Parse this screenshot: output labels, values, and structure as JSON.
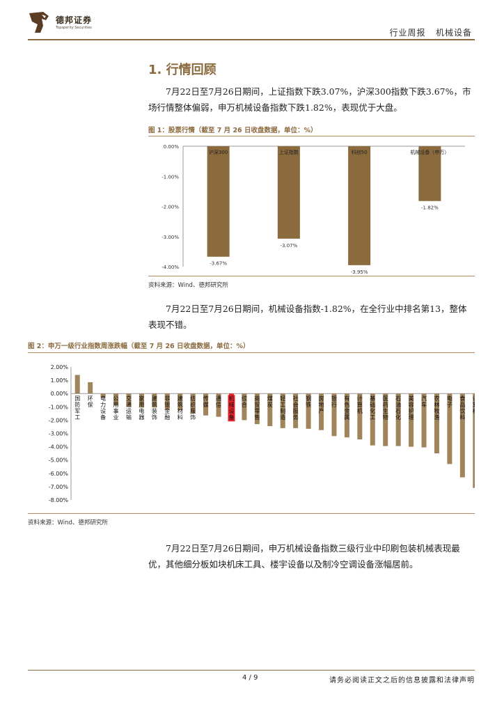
{
  "header": {
    "brand_cn": "德邦证券",
    "brand_en": "Topsperity Securities",
    "report_type": "行业周报",
    "industry": "机械设备"
  },
  "section": {
    "title": "1. 行情回顾"
  },
  "paragraphs": {
    "p1": "7月22日至7月26日期间，上证指数下跌3.07%，沪深300指数下跌3.67%，市场行情整体偏弱，申万机械设备指数下跌1.82%，表现优于大盘。",
    "p2": "7月22日至7月26日期间，机械设备指数-1.82%，在全行业中排名第13，整体表现不错。",
    "p3": "7月22日至7月26日期间，申万机械设备指数三级行业中印刷包装机械表现最优，其他细分板如块机床工具、楼宇设备以及制冷空调设备涨幅居前。"
  },
  "figure1": {
    "title": "图 1：股票行情（截至 7 月 26 日收盘数据，单位：%）",
    "source": "资料来源：Wind、德邦研究所"
  },
  "figure2": {
    "title": "图 2：申万一级行业指数周涨跌幅（截至 7 月 26 日收盘数据，单位：%）",
    "source": "资料来源：Wind、德邦研究所"
  },
  "chart_data": [
    {
      "type": "bar",
      "categories": [
        "沪深300",
        "上证指数",
        "科创50",
        "机械设备（申万）"
      ],
      "values": [
        -3.67,
        -3.07,
        -3.95,
        -1.82
      ],
      "data_labels": [
        "-3.67%",
        "-3.07%",
        "-3.95%",
        "-1.82%"
      ],
      "yticks": [
        "0.00%",
        "-1.00%",
        "-2.00%",
        "-3.00%",
        "-4.00%"
      ],
      "ylim": [
        -4,
        0
      ],
      "bar_color": "#8b6a3e",
      "grid": false
    },
    {
      "type": "bar",
      "categories": [
        "国防军工",
        "环保",
        "电力设备",
        "公用事业",
        "交通运输",
        "家用电器",
        "建筑装饰",
        "非银金融",
        "建筑材料",
        "纺织服饰",
        "传媒",
        "通信",
        "机械设备",
        "综合",
        "商贸零售",
        "煤炭",
        "轻工制造",
        "社会服务",
        "钢铁",
        "房地产",
        "银行",
        "有色金属",
        "计算机",
        "基础化工",
        "医药生物",
        "石油石化",
        "美容护理",
        "汽车",
        "农林牧渔",
        "电子",
        "食品饮料",
        "计算机"
      ],
      "values": [
        1.4,
        0.85,
        -0.3,
        -0.9,
        -1.0,
        -1.05,
        -1.05,
        -1.2,
        -1.25,
        -1.5,
        -1.65,
        -1.75,
        -1.82,
        -2.0,
        -2.3,
        -2.45,
        -2.6,
        -2.6,
        -2.65,
        -2.75,
        -3.2,
        -3.3,
        -3.45,
        -3.9,
        -3.95,
        -3.95,
        -4.0,
        -4.05,
        -4.5,
        -5.3,
        -6.3,
        -7.1
      ],
      "highlight_index": 12,
      "yticks": [
        "2.00%",
        "1.00%",
        "0.00%",
        "-1.00%",
        "-2.00%",
        "-3.00%",
        "-4.00%",
        "-5.00%",
        "-6.00%",
        "-7.00%",
        "-8.00%"
      ],
      "ylim": [
        -8,
        2
      ],
      "bar_color": "#a0845c",
      "highlight_color": "#e8242b",
      "grid": false
    }
  ],
  "footer": {
    "page": "4 / 9",
    "disclaimer": "请务必阅读正文之后的信息披露和法律声明"
  }
}
